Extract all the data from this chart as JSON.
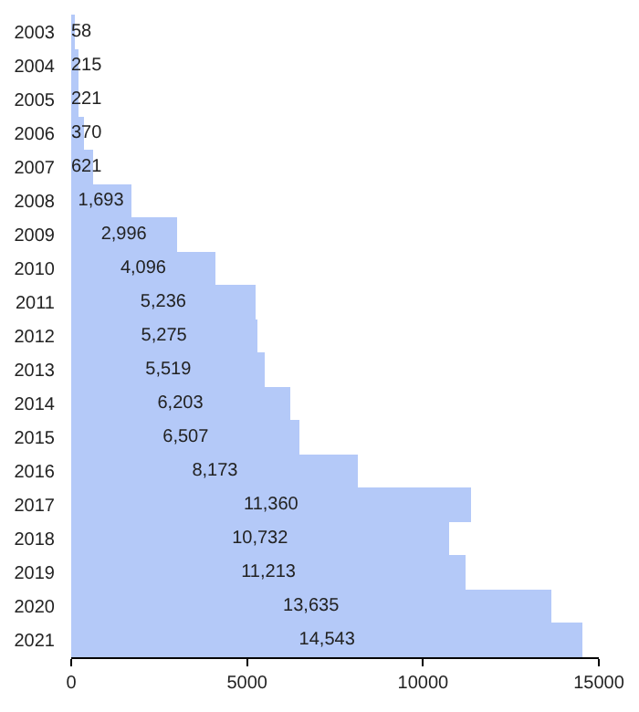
{
  "chart_data": {
    "type": "bar",
    "orientation": "horizontal",
    "categories": [
      "2003",
      "2004",
      "2005",
      "2006",
      "2007",
      "2008",
      "2009",
      "2010",
      "2011",
      "2012",
      "2013",
      "2014",
      "2015",
      "2016",
      "2017",
      "2018",
      "2019",
      "2020",
      "2021"
    ],
    "values": [
      58,
      215,
      221,
      370,
      621,
      1693,
      2996,
      4096,
      5236,
      5275,
      5519,
      6203,
      6507,
      8173,
      11360,
      10732,
      11213,
      13635,
      14543
    ],
    "color": "#b4c9f8",
    "xlim": [
      0,
      15000
    ],
    "xticks": [
      0,
      5000,
      10000,
      15000
    ],
    "value_labels": [
      "58",
      "215",
      "221",
      "370",
      "621",
      "1,693",
      "2,996",
      "4,096",
      "5,236",
      "5,275",
      "5,519",
      "6,203",
      "6,507",
      "8,173",
      "11,360",
      "10,732",
      "11,213",
      "13,635",
      "14,543"
    ]
  }
}
